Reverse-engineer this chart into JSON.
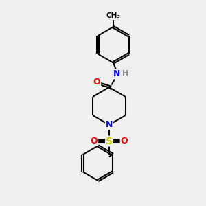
{
  "bg_color": "#f0f0f0",
  "bond_color": "#000000",
  "atom_colors": {
    "O": "#ff0000",
    "N": "#0000ff",
    "S": "#cccc00",
    "C": "#000000",
    "H": "#888888"
  },
  "font_size": 9,
  "line_width": 1.5
}
